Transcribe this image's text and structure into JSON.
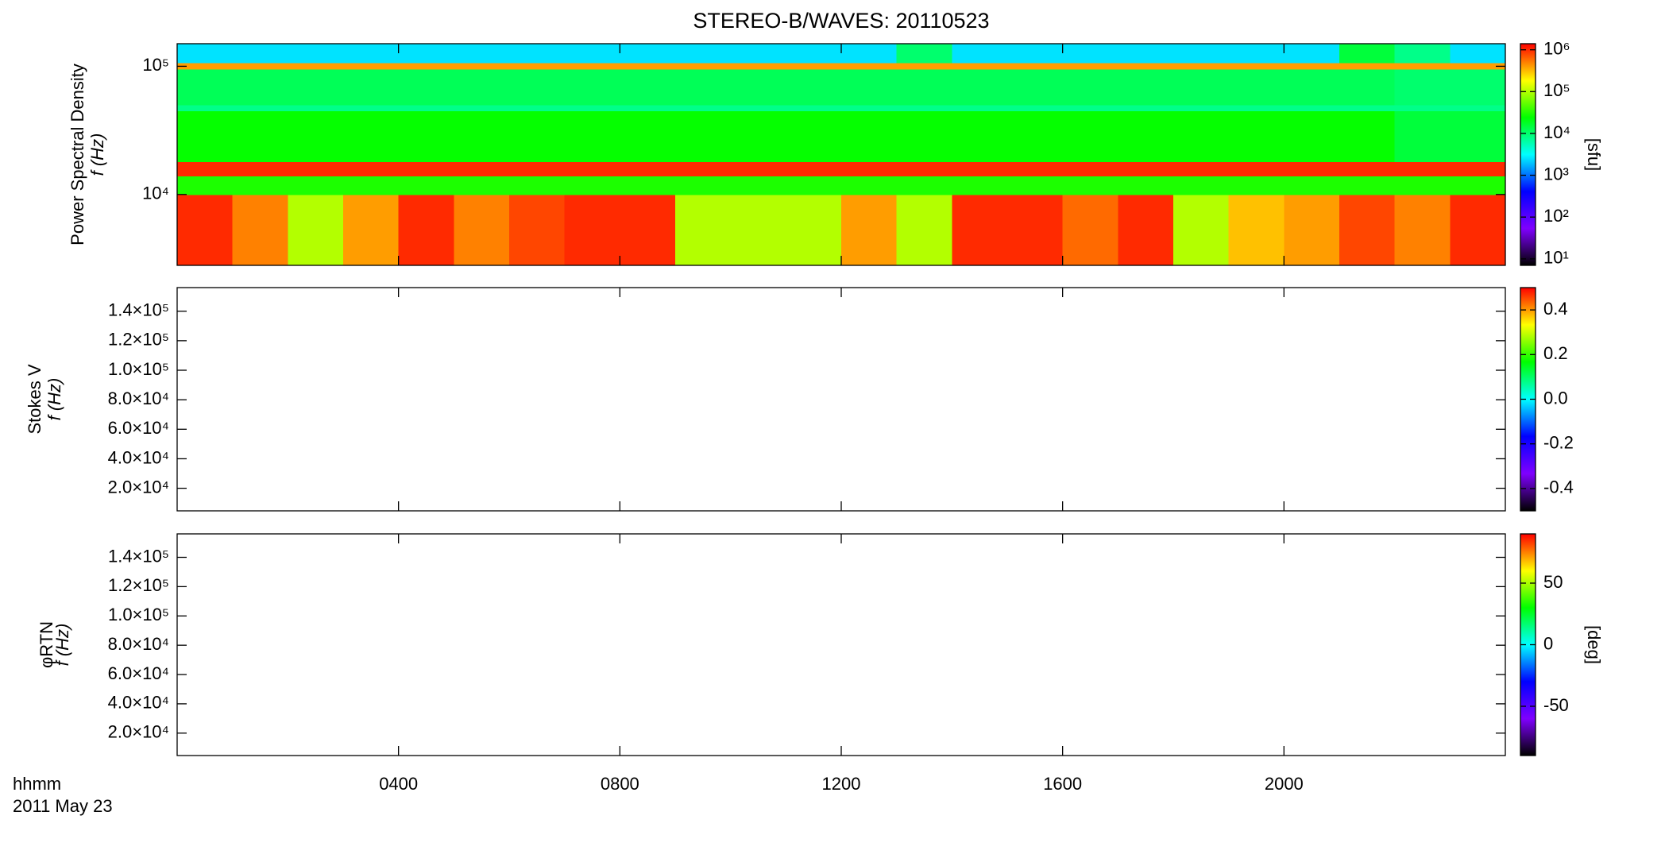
{
  "chart_data": {
    "type": "spectrogram",
    "title": "STEREO-B/WAVES: 20110523",
    "x_label": [
      "hhmm",
      "2011 May 23"
    ],
    "xlim": [
      0,
      24
    ],
    "xticks": [
      {
        "value": 4,
        "label": "0400"
      },
      {
        "value": 8,
        "label": "0800"
      },
      {
        "value": 12,
        "label": "1200"
      },
      {
        "value": 16,
        "label": "1600"
      },
      {
        "value": 20,
        "label": "2000"
      }
    ],
    "colormap": [
      "#000000",
      "#7f00ff",
      "#0000ff",
      "#00ffff",
      "#00ff00",
      "#ffff00",
      "#ff0000"
    ],
    "panels": [
      {
        "type": "spectrogram",
        "ylabel": [
          "Power Spectral Density",
          "f (Hz)"
        ],
        "ylog": true,
        "ylim": [
          2800,
          150000
        ],
        "yticks": [
          {
            "value": 10000,
            "label": "10⁴"
          },
          {
            "value": 100000,
            "label": "10⁵"
          }
        ],
        "clog": true,
        "clim": [
          7,
          1400000
        ],
        "cticks": [
          {
            "value": 10,
            "label": "10¹"
          },
          {
            "value": 100,
            "label": "10²"
          },
          {
            "value": 1000,
            "label": "10³"
          },
          {
            "value": 10000,
            "label": "10⁴"
          },
          {
            "value": 100000,
            "label": "10⁵"
          },
          {
            "value": 1000000,
            "label": "10⁶"
          }
        ],
        "clabel": "[sfu]",
        "time_bins": [
          0,
          1,
          2,
          3,
          4,
          5,
          6,
          7,
          8,
          9,
          10,
          11,
          12,
          13,
          14,
          15,
          16,
          17,
          18,
          19,
          20,
          21,
          22,
          23,
          24
        ],
        "freq_bins": [
          2800,
          10000,
          14000,
          18000,
          45000,
          50000,
          95000,
          107000,
          150000
        ],
        "z": [
          [
            1000000,
            500000,
            100000,
            400000,
            1000000,
            500000,
            800000,
            1000000,
            1000000,
            100000,
            100000,
            100000,
            400000,
            100000,
            1000000,
            1000000,
            600000,
            1000000,
            100000,
            300000,
            400000,
            800000,
            500000,
            1000000
          ],
          [
            30000,
            30000,
            30000,
            30000,
            30000,
            30000,
            30000,
            30000,
            30000,
            30000,
            30000,
            30000,
            30000,
            30000,
            30000,
            30000,
            30000,
            30000,
            30000,
            30000,
            30000,
            30000,
            30000,
            30000
          ],
          [
            1000000,
            1000000,
            1000000,
            1000000,
            1000000,
            1000000,
            1000000,
            1000000,
            1000000,
            1000000,
            1000000,
            1000000,
            1000000,
            1000000,
            1000000,
            1000000,
            1000000,
            1000000,
            1000000,
            1000000,
            1000000,
            1000000,
            1000000,
            1000000
          ],
          [
            25000,
            25000,
            25000,
            25000,
            25000,
            25000,
            25000,
            25000,
            25000,
            25000,
            25000,
            25000,
            25000,
            25000,
            25000,
            25000,
            25000,
            25000,
            25000,
            25000,
            25000,
            25000,
            15000,
            15000
          ],
          [
            8000,
            8000,
            8000,
            8000,
            8000,
            8000,
            8000,
            8000,
            8000,
            8000,
            8000,
            8000,
            8000,
            8000,
            8000,
            8000,
            8000,
            8000,
            8000,
            8000,
            8000,
            8000,
            8000,
            8000
          ],
          [
            12000,
            12000,
            12000,
            12000,
            12000,
            12000,
            12000,
            12000,
            12000,
            12000,
            12000,
            12000,
            12000,
            12000,
            12000,
            12000,
            12000,
            12000,
            12000,
            12000,
            12000,
            12000,
            10000,
            10000
          ],
          [
            400000,
            400000,
            400000,
            400000,
            400000,
            400000,
            400000,
            400000,
            400000,
            400000,
            400000,
            400000,
            400000,
            400000,
            400000,
            400000,
            400000,
            400000,
            400000,
            400000,
            400000,
            400000,
            400000,
            400000
          ],
          [
            2500,
            2500,
            2500,
            2500,
            2500,
            2500,
            2500,
            2500,
            2500,
            2500,
            2500,
            2500,
            2500,
            10000,
            2500,
            2500,
            2500,
            2500,
            2500,
            2500,
            2500,
            15000,
            8000,
            2500
          ]
        ]
      },
      {
        "type": "spectrogram",
        "ylabel": [
          "Stokes V",
          "f (Hz)"
        ],
        "ylog": false,
        "ylim": [
          4700,
          156000
        ],
        "yticks": [
          {
            "value": 20000,
            "label": "2.0×10⁴"
          },
          {
            "value": 40000,
            "label": "4.0×10⁴"
          },
          {
            "value": 60000,
            "label": "6.0×10⁴"
          },
          {
            "value": 80000,
            "label": "8.0×10⁴"
          },
          {
            "value": 100000,
            "label": "1.0×10⁵"
          },
          {
            "value": 120000,
            "label": "1.2×10⁵"
          },
          {
            "value": 140000,
            "label": "1.4×10⁵"
          }
        ],
        "clog": false,
        "clim": [
          -0.5,
          0.5
        ],
        "cticks": [
          0.4,
          0.2,
          {
            "value": 0,
            "label": "0.0"
          },
          -0.2,
          -0.4
        ]
      },
      {
        "type": "spectrogram",
        "ylabel": [
          "φRTN",
          "f (Hz)"
        ],
        "ylog": false,
        "ylim": [
          4700,
          156000
        ],
        "yticks": [
          {
            "value": 20000,
            "label": "2.0×10⁴"
          },
          {
            "value": 40000,
            "label": "4.0×10⁴"
          },
          {
            "value": 60000,
            "label": "6.0×10⁴"
          },
          {
            "value": 80000,
            "label": "8.0×10⁴"
          },
          {
            "value": 100000,
            "label": "1.0×10⁵"
          },
          {
            "value": 120000,
            "label": "1.2×10⁵"
          },
          {
            "value": 140000,
            "label": "1.4×10⁵"
          }
        ],
        "clog": false,
        "clim": [
          -90,
          90
        ],
        "cticks": [
          50,
          0,
          -50
        ],
        "clabel": "[deg]"
      }
    ]
  }
}
